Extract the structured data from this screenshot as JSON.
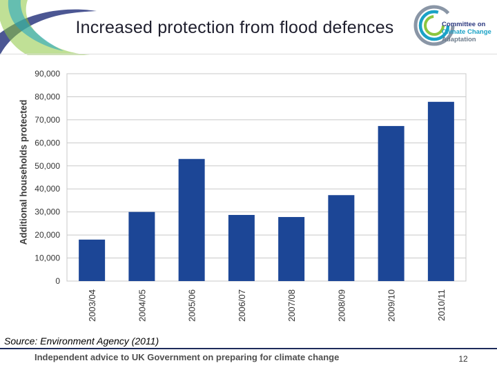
{
  "slide": {
    "title": "Increased protection from flood defences",
    "source": "Source: Environment Agency (2011)",
    "footer": "Independent advice to UK Government on preparing for climate change",
    "page_number": "12"
  },
  "logo": {
    "line1": "Committee on",
    "line2": "Climate Change",
    "line3": "Adaptation"
  },
  "colors": {
    "bar": "#1c4696",
    "navy": "#2d3a80",
    "teal": "#1aa2c6",
    "green": "#8cc63f",
    "grid": "#c8c8c8"
  },
  "chart_data": {
    "type": "bar",
    "title": "",
    "xlabel": "",
    "ylabel": "Additional households protected",
    "categories": [
      "2003/04",
      "2004/05",
      "2005/06",
      "2006/07",
      "2007/08",
      "2008/09",
      "2009/10",
      "2010/11"
    ],
    "values": [
      18000,
      30000,
      53000,
      28700,
      27800,
      37300,
      67300,
      77800
    ],
    "ylim": [
      0,
      90000
    ],
    "yticks": [
      "0",
      "10,000",
      "20,000",
      "30,000",
      "40,000",
      "50,000",
      "60,000",
      "70,000",
      "80,000",
      "90,000"
    ],
    "grid": true,
    "legend": "none"
  }
}
